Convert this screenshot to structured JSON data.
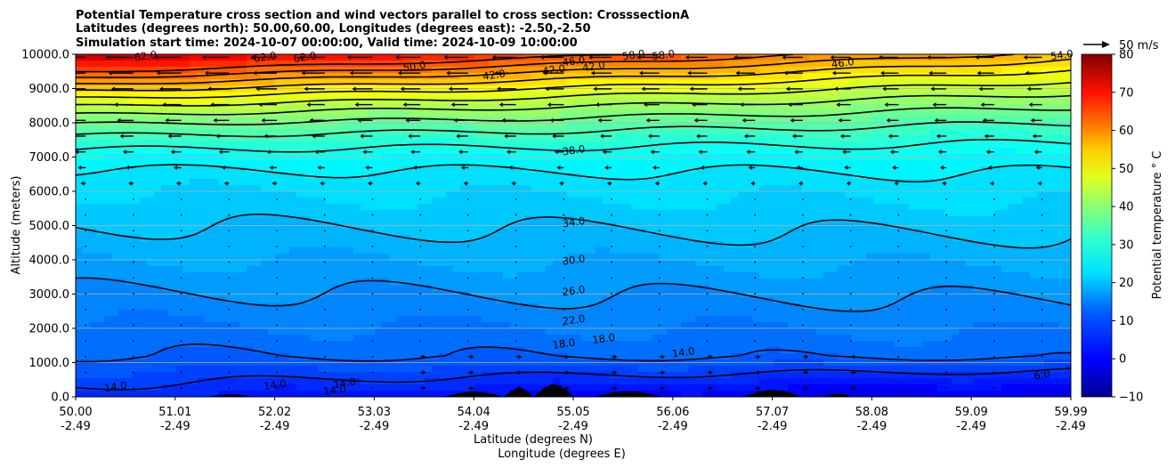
{
  "chart_data": {
    "type": "heatmap",
    "title_lines": [
      "Potential Temperature cross section and wind vectors parallel to cross section: CrosssectionA",
      "Latitudes (degrees north): 50.00,60.00, Longitudes (degrees east): -2.50,-2.50",
      "Simulation start time: 2024-10-07 00:00:00, Valid time: 2024-10-09 10:00:00"
    ],
    "xlabel_line1": "Latitude (degrees N)",
    "xlabel_line2": "Longitude (degrees E)",
    "ylabel": "Altitude (meters)",
    "xlim": [
      50.0,
      59.99
    ],
    "ylim": [
      0,
      10000
    ],
    "x_ticks": [
      {
        "lat": "50.00",
        "lon": "-2.49"
      },
      {
        "lat": "51.01",
        "lon": "-2.49"
      },
      {
        "lat": "52.02",
        "lon": "-2.49"
      },
      {
        "lat": "53.03",
        "lon": "-2.49"
      },
      {
        "lat": "54.04",
        "lon": "-2.49"
      },
      {
        "lat": "55.05",
        "lon": "-2.49"
      },
      {
        "lat": "56.06",
        "lon": "-2.49"
      },
      {
        "lat": "57.07",
        "lon": "-2.49"
      },
      {
        "lat": "58.08",
        "lon": "-2.49"
      },
      {
        "lat": "59.09",
        "lon": "-2.49"
      },
      {
        "lat": "59.99",
        "lon": "-2.49"
      }
    ],
    "y_ticks": [
      "0.0",
      "1000.0",
      "2000.0",
      "3000.0",
      "4000.0",
      "5000.0",
      "6000.0",
      "7000.0",
      "8000.0",
      "9000.0",
      "10000.0"
    ],
    "y_tick_values": [
      0,
      1000,
      2000,
      3000,
      4000,
      5000,
      6000,
      7000,
      8000,
      9000,
      10000
    ],
    "grid": "horizontal",
    "colorbar": {
      "label": "Potential temperature ° C",
      "range": [
        -10,
        80
      ],
      "ticks": [
        "−10",
        "0",
        "10",
        "20",
        "30",
        "40",
        "50",
        "60",
        "70",
        "80"
      ],
      "tick_values": [
        -10,
        0,
        10,
        20,
        30,
        40,
        50,
        60,
        70,
        80
      ],
      "colormap": "jet"
    },
    "quiver_key": "50 m/s",
    "contour_levels": [
      6,
      10,
      14,
      18,
      22,
      26,
      30,
      34,
      38,
      42,
      46,
      50,
      54,
      58,
      62
    ],
    "contour_labels": [
      {
        "text": "62.0",
        "lat": 50.7,
        "alt": 9950
      },
      {
        "text": "62.0",
        "lat": 51.9,
        "alt": 9920
      },
      {
        "text": "62.0",
        "lat": 52.3,
        "alt": 9920
      },
      {
        "text": "58.0",
        "lat": 55.6,
        "alt": 9980
      },
      {
        "text": "58.0",
        "lat": 55.9,
        "alt": 9980
      },
      {
        "text": "54.0",
        "lat": 59.9,
        "alt": 9980
      },
      {
        "text": "50.0",
        "lat": 53.4,
        "alt": 9650
      },
      {
        "text": "46.0",
        "lat": 55.0,
        "alt": 9800
      },
      {
        "text": "46.0",
        "lat": 57.7,
        "alt": 9750
      },
      {
        "text": "42.0",
        "lat": 54.2,
        "alt": 9400
      },
      {
        "text": "42.0",
        "lat": 54.8,
        "alt": 9550
      },
      {
        "text": "42.0",
        "lat": 55.2,
        "alt": 9650
      },
      {
        "text": "38.0",
        "lat": 55.0,
        "alt": 7200
      },
      {
        "text": "34.0",
        "lat": 55.0,
        "alt": 5100
      },
      {
        "text": "30.0",
        "lat": 55.0,
        "alt": 4000
      },
      {
        "text": "26.0",
        "lat": 55.0,
        "alt": 3100
      },
      {
        "text": "22.0",
        "lat": 55.0,
        "alt": 2250
      },
      {
        "text": "18.0",
        "lat": 54.9,
        "alt": 1550
      },
      {
        "text": "18.0",
        "lat": 55.3,
        "alt": 1700
      },
      {
        "text": "14.0",
        "lat": 56.1,
        "alt": 1300
      },
      {
        "text": "14.0",
        "lat": 50.4,
        "alt": 300
      },
      {
        "text": "14.0",
        "lat": 52.7,
        "alt": 400
      },
      {
        "text": "14.0",
        "lat": 52.0,
        "alt": 350
      },
      {
        "text": "14.0",
        "lat": 52.6,
        "alt": 200
      },
      {
        "text": "6.0",
        "lat": 59.7,
        "alt": 650
      }
    ]
  }
}
